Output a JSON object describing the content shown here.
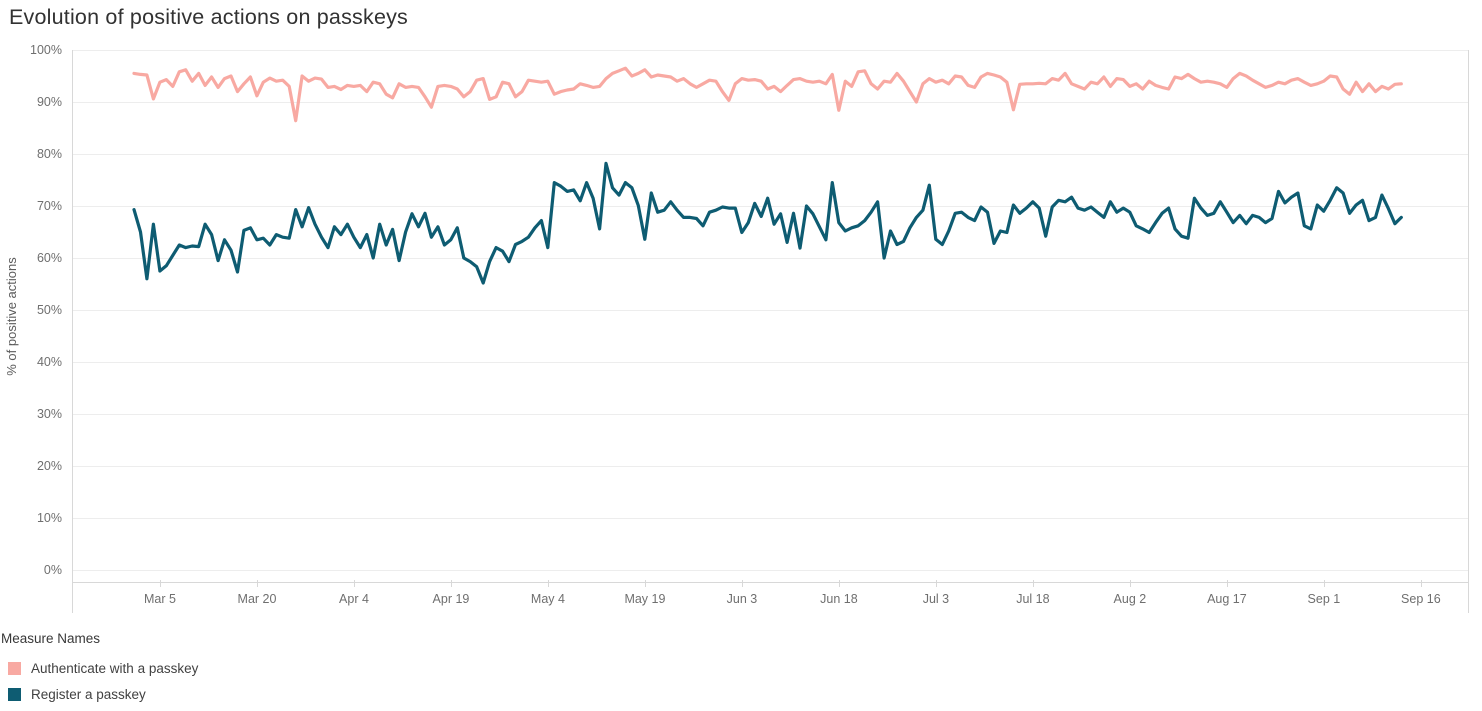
{
  "title": "Evolution of positive actions on passkeys",
  "y_axis": {
    "title": "% of positive actions",
    "ticks": [
      "0%",
      "10%",
      "20%",
      "30%",
      "40%",
      "50%",
      "60%",
      "70%",
      "80%",
      "90%",
      "100%"
    ]
  },
  "x_axis": {
    "ticks": [
      "Mar 5",
      "Mar 20",
      "Apr 4",
      "Apr 19",
      "May 4",
      "May 19",
      "Jun 3",
      "Jun 18",
      "Jul 3",
      "Jul 18",
      "Aug 2",
      "Aug 17",
      "Sep 1",
      "Sep 16"
    ]
  },
  "legend": {
    "title": "Measure Names",
    "items": [
      {
        "id": "authenticate",
        "label": "Authenticate with a passkey",
        "color": "#f8a9a2"
      },
      {
        "id": "register",
        "label": "Register a passkey",
        "color": "#0e5c72"
      }
    ]
  },
  "colors": {
    "title_text": "#323232",
    "tick_text": "#6f6f6f",
    "axis_line": "#d8d8d8",
    "gridline": "#ededed",
    "series_authenticate": "#f8a9a2",
    "series_register": "#0e5c72"
  },
  "chart_data": {
    "type": "line",
    "title": "Evolution of positive actions on passkeys",
    "xlabel": "",
    "ylabel": "% of positive actions",
    "ylim": [
      0,
      100
    ],
    "y_tick_step_percent": 10,
    "grid": true,
    "legend_position": "bottom-left",
    "x_unit": "day",
    "x_range": [
      "Mar 1",
      "Sep 13"
    ],
    "x_tick_labels": [
      "Mar 5",
      "Mar 20",
      "Apr 4",
      "Apr 19",
      "May 4",
      "May 19",
      "Jun 3",
      "Jun 18",
      "Jul 3",
      "Jul 18",
      "Aug 2",
      "Aug 17",
      "Sep 1",
      "Sep 16"
    ],
    "x_tick_interval_days": 15,
    "series": [
      {
        "id": "authenticate",
        "name": "Authenticate with a passkey",
        "color": "#f8a9a2",
        "values": [
          95.5,
          95.3,
          95.2,
          90.6,
          93.8,
          94.3,
          93,
          95.8,
          96.2,
          94,
          95.5,
          93.2,
          94.8,
          92.8,
          94.5,
          95,
          92,
          93.5,
          94.8,
          91.2,
          93.8,
          94.6,
          94,
          94.2,
          93,
          86.4,
          95,
          94,
          94.6,
          94.4,
          92.8,
          93,
          92.4,
          93.2,
          93,
          93.2,
          92,
          93.8,
          93.5,
          91.5,
          90.8,
          93.5,
          92.8,
          93,
          92.8,
          91,
          89,
          93,
          93.2,
          93,
          92.5,
          91,
          92,
          94.2,
          94.5,
          90.5,
          91,
          93.8,
          93.5,
          91,
          92,
          94.2,
          94,
          93.8,
          94,
          91.5,
          92,
          92.3,
          92.5,
          93.5,
          93.2,
          92.8,
          93,
          94.5,
          95.5,
          96,
          96.5,
          95,
          95.5,
          96.2,
          94.8,
          95.2,
          95,
          94.8,
          94,
          94.5,
          93.5,
          92.8,
          93.5,
          94.2,
          94,
          92,
          90.3,
          93.5,
          94.5,
          94.2,
          94.3,
          94,
          92.5,
          93,
          92,
          93.2,
          94.3,
          94.5,
          94,
          93.8,
          94,
          93.5,
          95.3,
          88.4,
          94,
          93,
          95.8,
          96,
          93.5,
          92.5,
          94,
          93.8,
          95.5,
          94,
          92,
          90,
          93.5,
          94.5,
          93.8,
          94.2,
          93.5,
          95,
          94.8,
          93.2,
          92.8,
          94.8,
          95.5,
          95.2,
          94.8,
          93.8,
          88.5,
          93.4,
          93.5,
          93.5,
          93.6,
          93.5,
          94.5,
          94.2,
          95.5,
          93.5,
          93,
          92.5,
          93.8,
          93.5,
          94.8,
          93,
          94.5,
          94.3,
          93,
          93.5,
          92.5,
          94,
          93.2,
          92.8,
          92.5,
          94.8,
          94.5,
          95.3,
          94.5,
          93.8,
          94,
          93.8,
          93.5,
          92.8,
          94.5,
          95.5,
          95,
          94.2,
          93.5,
          92.8,
          93.2,
          93.8,
          93.5,
          94.2,
          94.5,
          93.8,
          93.2,
          93.5,
          94,
          95,
          94.8,
          92.5,
          91.5,
          93.8,
          92,
          93.5,
          92,
          93,
          92.5,
          93.4,
          93.5
        ]
      },
      {
        "id": "register",
        "name": "Register a passkey",
        "color": "#0e5c72",
        "values": [
          69.3,
          65,
          56,
          66.5,
          57.5,
          58.5,
          60.5,
          62.5,
          62,
          62.3,
          62.2,
          66.5,
          64.5,
          59.5,
          63.5,
          61.5,
          57.3,
          65.3,
          65.8,
          63.5,
          63.8,
          62.5,
          64.5,
          64,
          63.8,
          69.3,
          66,
          69.7,
          66.5,
          64,
          62,
          66,
          64.5,
          66.5,
          64,
          62,
          64.5,
          60,
          66.5,
          62.5,
          65.5,
          59.5,
          65,
          68.5,
          66,
          68.6,
          64,
          66,
          62.5,
          63.5,
          65.8,
          60,
          59.3,
          58.3,
          55.2,
          59.3,
          62,
          61.3,
          59.3,
          62.6,
          63.2,
          64,
          65.8,
          67.2,
          62,
          74.5,
          73.8,
          72.8,
          73.1,
          71,
          74.5,
          71.5,
          65.6,
          78.2,
          73.5,
          72.1,
          74.5,
          73.5,
          70.1,
          63.6,
          72.5,
          68.8,
          69.2,
          70.8,
          69.2,
          67.8,
          67.8,
          67.6,
          66.2,
          68.8,
          69.2,
          69.8,
          69.6,
          69.6,
          64.9,
          66.8,
          70.5,
          68,
          71.5,
          66.5,
          68.5,
          63,
          68.6,
          61.9,
          70,
          68.5,
          66,
          63.5,
          74.5,
          66.8,
          65.2,
          65.8,
          66.2,
          67.2,
          68.8,
          70.8,
          60,
          65.2,
          62.6,
          63.2,
          65.8,
          67.8,
          69.2,
          74,
          63.6,
          62.6,
          65.2,
          68.6,
          68.8,
          67.8,
          67.2,
          69.8,
          68.8,
          62.8,
          65.2,
          64.9,
          70.2,
          68.6,
          69.6,
          70.8,
          69.6,
          64.2,
          69.8,
          71.1,
          70.8,
          71.7,
          69.6,
          69.2,
          69.8,
          68.8,
          67.8,
          70.8,
          68.8,
          69.6,
          68.8,
          66.2,
          65.6,
          64.9,
          66.8,
          68.6,
          69.6,
          65.6,
          64.2,
          63.8,
          71.5,
          69.6,
          68.2,
          68.6,
          70.8,
          68.8,
          66.8,
          68.2,
          66.6,
          68.2,
          67.8,
          66.8,
          67.6,
          72.8,
          70.6,
          71.7,
          72.5,
          66.2,
          65.6,
          70.2,
          69,
          71.1,
          73.5,
          72.5,
          68.6,
          70.2,
          71.1,
          67.2,
          67.8,
          72.1,
          69.5,
          66.6,
          67.8
        ]
      }
    ]
  }
}
